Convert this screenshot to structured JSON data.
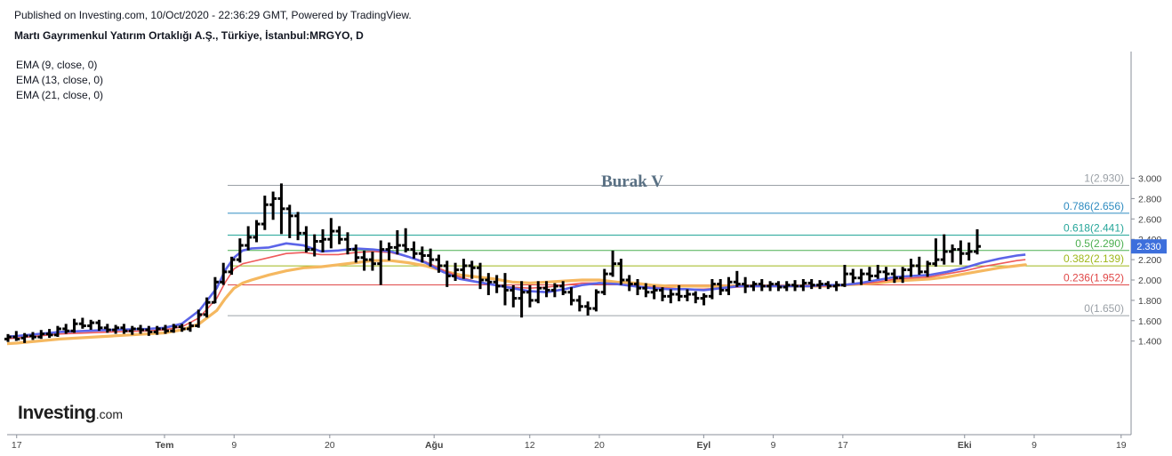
{
  "header": {
    "published": "Published on Investing.com, 10/Oct/2020 - 22:36:29 GMT, Powered by TradingView.",
    "symbol": "Martı Gayrımenkul Yatırım Ortaklığı A.Ş., Türkiye, İstanbul:MRGYO, D"
  },
  "indicators": [
    {
      "label": "EMA (9, close, 0)",
      "color": "#5b64e8"
    },
    {
      "label": "EMA (13, close, 0)",
      "color": "#ef5a5a"
    },
    {
      "label": "EMA (21, close, 0)",
      "color": "#f5b860"
    }
  ],
  "logo": {
    "brand": "Investing",
    "suffix": ".com"
  },
  "annotation": {
    "text": "Burak V"
  },
  "price_badge": {
    "value": "2.330",
    "color": "#3d6fdc"
  },
  "chart_data": {
    "type": "ohlc",
    "title": "Martı Gayrımenkul Yatırım Ortaklığı A.Ş., Türkiye, İstanbul:MRGYO, D",
    "ylim": [
      1.22,
      3.08
    ],
    "y_ticks": [
      "3.000",
      "2.800",
      "2.600",
      "2.400",
      "2.200",
      "2.000",
      "1.800",
      "1.600",
      "1.400"
    ],
    "x_ticks": [
      {
        "label": "17",
        "day": -17
      },
      {
        "label": "Tem",
        "day": 0
      },
      {
        "label": "9",
        "day": 8
      },
      {
        "label": "20",
        "day": 19
      },
      {
        "label": "Ağu",
        "day": 31
      },
      {
        "label": "12",
        "day": 42
      },
      {
        "label": "20",
        "day": 50
      },
      {
        "label": "Eyl",
        "day": 62
      },
      {
        "label": "9",
        "day": 70
      },
      {
        "label": "17",
        "day": 78
      },
      {
        "label": "Eki",
        "day": 92
      },
      {
        "label": "9",
        "day": 100
      },
      {
        "label": "19",
        "day": 110
      }
    ],
    "fib_levels": [
      {
        "ratio": "1",
        "value": 2.93,
        "label": "1(2.930)",
        "color": "#9aa0a6"
      },
      {
        "ratio": "0.786",
        "value": 2.656,
        "label": "0.786(2.656)",
        "color": "#2e8bc0"
      },
      {
        "ratio": "0.618",
        "value": 2.441,
        "label": "0.618(2.441)",
        "color": "#26a69a"
      },
      {
        "ratio": "0.5",
        "value": 2.29,
        "label": "0.5(2.290)",
        "color": "#4caf50"
      },
      {
        "ratio": "0.382",
        "value": 2.139,
        "label": "0.382(2.139)",
        "color": "#9fb81a"
      },
      {
        "ratio": "0.236",
        "value": 1.952,
        "label": "0.236(1.952)",
        "color": "#e04848"
      },
      {
        "ratio": "0",
        "value": 1.65,
        "label": "0(1.650)",
        "color": "#9aa0a6"
      }
    ],
    "ohlc": [
      [
        1.42,
        1.46,
        1.4,
        1.44
      ],
      [
        1.44,
        1.49,
        1.41,
        1.42
      ],
      [
        1.43,
        1.47,
        1.39,
        1.45
      ],
      [
        1.45,
        1.48,
        1.42,
        1.44
      ],
      [
        1.44,
        1.5,
        1.43,
        1.47
      ],
      [
        1.47,
        1.51,
        1.44,
        1.46
      ],
      [
        1.46,
        1.54,
        1.45,
        1.52
      ],
      [
        1.52,
        1.56,
        1.48,
        1.5
      ],
      [
        1.5,
        1.61,
        1.49,
        1.57
      ],
      [
        1.57,
        1.62,
        1.53,
        1.55
      ],
      [
        1.55,
        1.6,
        1.52,
        1.58
      ],
      [
        1.58,
        1.6,
        1.51,
        1.53
      ],
      [
        1.53,
        1.56,
        1.49,
        1.51
      ],
      [
        1.51,
        1.55,
        1.48,
        1.53
      ],
      [
        1.53,
        1.56,
        1.48,
        1.5
      ],
      [
        1.5,
        1.54,
        1.47,
        1.52
      ],
      [
        1.52,
        1.55,
        1.48,
        1.51
      ],
      [
        1.51,
        1.54,
        1.46,
        1.49
      ],
      [
        1.49,
        1.54,
        1.47,
        1.52
      ],
      [
        1.52,
        1.55,
        1.48,
        1.5
      ],
      [
        1.5,
        1.56,
        1.49,
        1.54
      ],
      [
        1.54,
        1.56,
        1.5,
        1.52
      ],
      [
        1.52,
        1.58,
        1.5,
        1.55
      ],
      [
        1.55,
        1.7,
        1.54,
        1.66
      ],
      [
        1.66,
        1.82,
        1.64,
        1.78
      ],
      [
        1.78,
        2.02,
        1.78,
        1.98
      ],
      [
        1.98,
        2.16,
        1.96,
        2.08
      ],
      [
        2.08,
        2.22,
        2.06,
        2.2
      ],
      [
        2.2,
        2.4,
        2.18,
        2.34
      ],
      [
        2.34,
        2.52,
        2.3,
        2.42
      ],
      [
        2.42,
        2.58,
        2.38,
        2.55
      ],
      [
        2.55,
        2.82,
        2.5,
        2.74
      ],
      [
        2.74,
        2.86,
        2.6,
        2.8
      ],
      [
        2.8,
        2.94,
        2.46,
        2.7
      ],
      [
        2.7,
        2.73,
        2.42,
        2.63
      ],
      [
        2.63,
        2.66,
        2.4,
        2.46
      ],
      [
        2.46,
        2.52,
        2.28,
        2.3
      ],
      [
        2.3,
        2.44,
        2.24,
        2.38
      ],
      [
        2.38,
        2.49,
        2.28,
        2.4
      ],
      [
        2.4,
        2.6,
        2.32,
        2.48
      ],
      [
        2.48,
        2.52,
        2.36,
        2.4
      ],
      [
        2.4,
        2.46,
        2.26,
        2.3
      ],
      [
        2.3,
        2.34,
        2.18,
        2.22
      ],
      [
        2.22,
        2.28,
        2.1,
        2.2
      ],
      [
        2.2,
        2.27,
        2.1,
        2.16
      ],
      [
        2.16,
        2.38,
        1.96,
        2.3
      ],
      [
        2.3,
        2.36,
        2.2,
        2.32
      ],
      [
        2.32,
        2.48,
        2.26,
        2.34
      ],
      [
        2.34,
        2.5,
        2.28,
        2.3
      ],
      [
        2.3,
        2.37,
        2.22,
        2.26
      ],
      [
        2.26,
        2.32,
        2.18,
        2.24
      ],
      [
        2.24,
        2.3,
        2.14,
        2.2
      ],
      [
        2.2,
        2.24,
        2.08,
        2.14
      ],
      [
        2.14,
        2.18,
        1.94,
        2.04
      ],
      [
        2.04,
        2.16,
        2.0,
        2.1
      ],
      [
        2.1,
        2.2,
        2.02,
        2.14
      ],
      [
        2.14,
        2.18,
        2.02,
        2.12
      ],
      [
        2.12,
        2.16,
        1.92,
        2.0
      ],
      [
        2.0,
        2.06,
        1.86,
        1.98
      ],
      [
        1.98,
        2.04,
        1.88,
        1.94
      ],
      [
        1.94,
        2.06,
        1.76,
        1.9
      ],
      [
        1.9,
        1.94,
        1.74,
        1.82
      ],
      [
        1.82,
        1.98,
        1.64,
        1.88
      ],
      [
        1.88,
        1.94,
        1.74,
        1.8
      ],
      [
        1.8,
        1.98,
        1.78,
        1.92
      ],
      [
        1.92,
        1.98,
        1.84,
        1.9
      ],
      [
        1.9,
        1.96,
        1.84,
        1.94
      ],
      [
        1.94,
        1.98,
        1.86,
        1.88
      ],
      [
        1.88,
        1.92,
        1.76,
        1.8
      ],
      [
        1.8,
        1.84,
        1.7,
        1.74
      ],
      [
        1.74,
        1.78,
        1.66,
        1.72
      ],
      [
        1.72,
        1.9,
        1.7,
        1.88
      ],
      [
        1.88,
        2.1,
        1.86,
        2.06
      ],
      [
        2.06,
        2.28,
        2.04,
        2.16
      ],
      [
        2.16,
        2.2,
        1.96,
        2.0
      ],
      [
        2.0,
        2.04,
        1.9,
        1.96
      ],
      [
        1.96,
        2.0,
        1.86,
        1.92
      ],
      [
        1.92,
        1.96,
        1.84,
        1.88
      ],
      [
        1.88,
        1.94,
        1.82,
        1.9
      ],
      [
        1.9,
        1.92,
        1.8,
        1.84
      ],
      [
        1.84,
        1.9,
        1.78,
        1.86
      ],
      [
        1.86,
        1.94,
        1.8,
        1.84
      ],
      [
        1.84,
        1.9,
        1.8,
        1.86
      ],
      [
        1.86,
        1.88,
        1.78,
        1.82
      ],
      [
        1.82,
        1.86,
        1.76,
        1.84
      ],
      [
        1.84,
        2.0,
        1.82,
        1.96
      ],
      [
        1.96,
        2.0,
        1.86,
        1.9
      ],
      [
        1.9,
        2.02,
        1.86,
        1.98
      ],
      [
        1.98,
        2.08,
        1.94,
        1.96
      ],
      [
        1.96,
        2.02,
        1.88,
        1.94
      ],
      [
        1.94,
        1.98,
        1.9,
        1.96
      ],
      [
        1.96,
        2.0,
        1.9,
        1.94
      ],
      [
        1.94,
        1.98,
        1.9,
        1.96
      ],
      [
        1.96,
        1.98,
        1.9,
        1.93
      ],
      [
        1.93,
        1.98,
        1.9,
        1.95
      ],
      [
        1.95,
        1.99,
        1.9,
        1.94
      ],
      [
        1.94,
        2.0,
        1.9,
        1.97
      ],
      [
        1.97,
        2.0,
        1.92,
        1.95
      ],
      [
        1.95,
        1.99,
        1.92,
        1.96
      ],
      [
        1.96,
        1.98,
        1.92,
        1.94
      ],
      [
        1.94,
        1.98,
        1.9,
        1.95
      ],
      [
        1.95,
        2.14,
        1.94,
        2.06
      ],
      [
        2.06,
        2.1,
        1.98,
        2.02
      ],
      [
        2.02,
        2.1,
        1.96,
        2.06
      ],
      [
        2.06,
        2.12,
        2.0,
        2.04
      ],
      [
        2.04,
        2.14,
        2.02,
        2.08
      ],
      [
        2.08,
        2.12,
        2.0,
        2.06
      ],
      [
        2.06,
        2.1,
        1.98,
        2.02
      ],
      [
        2.02,
        2.12,
        1.98,
        2.1
      ],
      [
        2.1,
        2.2,
        2.04,
        2.14
      ],
      [
        2.14,
        2.22,
        2.06,
        2.08
      ],
      [
        2.08,
        2.18,
        2.04,
        2.16
      ],
      [
        2.16,
        2.4,
        2.14,
        2.2
      ],
      [
        2.2,
        2.44,
        2.16,
        2.28
      ],
      [
        2.28,
        2.34,
        2.18,
        2.3
      ],
      [
        2.3,
        2.38,
        2.16,
        2.26
      ],
      [
        2.26,
        2.36,
        2.2,
        2.28
      ],
      [
        2.28,
        2.49,
        2.26,
        2.33
      ]
    ],
    "ema9": [
      [
        -25,
        1.41
      ],
      [
        -17,
        1.45
      ],
      [
        -12,
        1.49
      ],
      [
        -6,
        1.51
      ],
      [
        -2,
        1.52
      ],
      [
        0,
        1.53
      ],
      [
        2,
        1.57
      ],
      [
        4,
        1.7
      ],
      [
        6,
        1.92
      ],
      [
        7,
        2.1
      ],
      [
        8,
        2.22
      ],
      [
        9,
        2.29
      ],
      [
        10,
        2.31
      ],
      [
        12,
        2.32
      ],
      [
        14,
        2.36
      ],
      [
        16,
        2.34
      ],
      [
        18,
        2.28
      ],
      [
        20,
        2.29
      ],
      [
        22,
        2.31
      ],
      [
        24,
        2.3
      ],
      [
        26,
        2.28
      ],
      [
        28,
        2.23
      ],
      [
        30,
        2.17
      ],
      [
        32,
        2.08
      ],
      [
        34,
        2.01
      ],
      [
        36,
        1.98
      ],
      [
        38,
        1.95
      ],
      [
        40,
        1.92
      ],
      [
        42,
        1.89
      ],
      [
        44,
        1.88
      ],
      [
        46,
        1.91
      ],
      [
        48,
        1.95
      ],
      [
        50,
        1.97
      ],
      [
        52,
        1.96
      ],
      [
        54,
        1.94
      ],
      [
        56,
        1.92
      ],
      [
        58,
        1.91
      ],
      [
        60,
        1.91
      ],
      [
        62,
        1.9
      ],
      [
        64,
        1.92
      ],
      [
        66,
        1.94
      ],
      [
        68,
        1.94
      ],
      [
        70,
        1.94
      ],
      [
        72,
        1.94
      ],
      [
        74,
        1.94
      ],
      [
        76,
        1.95
      ],
      [
        78,
        1.95
      ],
      [
        80,
        1.97
      ],
      [
        82,
        2.0
      ],
      [
        84,
        2.03
      ],
      [
        86,
        2.04
      ],
      [
        88,
        2.05
      ],
      [
        90,
        2.08
      ],
      [
        92,
        2.12
      ],
      [
        94,
        2.17
      ],
      [
        96,
        2.21
      ],
      [
        98,
        2.24
      ],
      [
        99,
        2.25
      ]
    ],
    "ema13": [
      [
        -25,
        1.39
      ],
      [
        -17,
        1.43
      ],
      [
        -12,
        1.47
      ],
      [
        -6,
        1.49
      ],
      [
        -2,
        1.5
      ],
      [
        0,
        1.51
      ],
      [
        2,
        1.54
      ],
      [
        4,
        1.63
      ],
      [
        6,
        1.82
      ],
      [
        7,
        1.98
      ],
      [
        8,
        2.11
      ],
      [
        9,
        2.16
      ],
      [
        10,
        2.18
      ],
      [
        12,
        2.22
      ],
      [
        14,
        2.26
      ],
      [
        16,
        2.27
      ],
      [
        18,
        2.25
      ],
      [
        20,
        2.25
      ],
      [
        22,
        2.27
      ],
      [
        24,
        2.28
      ],
      [
        26,
        2.27
      ],
      [
        28,
        2.23
      ],
      [
        30,
        2.18
      ],
      [
        32,
        2.1
      ],
      [
        34,
        2.03
      ],
      [
        36,
        1.98
      ],
      [
        38,
        1.95
      ],
      [
        40,
        1.93
      ],
      [
        42,
        1.92
      ],
      [
        44,
        1.93
      ],
      [
        46,
        1.95
      ],
      [
        48,
        1.97
      ],
      [
        50,
        1.97
      ],
      [
        52,
        1.96
      ],
      [
        54,
        1.94
      ],
      [
        56,
        1.93
      ],
      [
        58,
        1.92
      ],
      [
        60,
        1.91
      ],
      [
        62,
        1.91
      ],
      [
        64,
        1.92
      ],
      [
        66,
        1.93
      ],
      [
        68,
        1.94
      ],
      [
        70,
        1.94
      ],
      [
        72,
        1.94
      ],
      [
        74,
        1.94
      ],
      [
        76,
        1.94
      ],
      [
        78,
        1.95
      ],
      [
        80,
        1.96
      ],
      [
        82,
        1.98
      ],
      [
        84,
        2.01
      ],
      [
        86,
        2.02
      ],
      [
        88,
        2.03
      ],
      [
        90,
        2.06
      ],
      [
        92,
        2.09
      ],
      [
        94,
        2.13
      ],
      [
        96,
        2.16
      ],
      [
        98,
        2.19
      ],
      [
        99,
        2.2
      ]
    ],
    "ema21": [
      [
        -25,
        1.34
      ],
      [
        -17,
        1.38
      ],
      [
        -12,
        1.42
      ],
      [
        -6,
        1.45
      ],
      [
        -2,
        1.47
      ],
      [
        0,
        1.48
      ],
      [
        2,
        1.51
      ],
      [
        4,
        1.57
      ],
      [
        6,
        1.7
      ],
      [
        7,
        1.82
      ],
      [
        8,
        1.92
      ],
      [
        9,
        1.97
      ],
      [
        10,
        2.0
      ],
      [
        12,
        2.05
      ],
      [
        14,
        2.09
      ],
      [
        16,
        2.12
      ],
      [
        18,
        2.13
      ],
      [
        20,
        2.15
      ],
      [
        22,
        2.17
      ],
      [
        24,
        2.19
      ],
      [
        26,
        2.19
      ],
      [
        28,
        2.17
      ],
      [
        30,
        2.14
      ],
      [
        32,
        2.09
      ],
      [
        34,
        2.05
      ],
      [
        36,
        2.03
      ],
      [
        38,
        2.01
      ],
      [
        40,
        1.98
      ],
      [
        42,
        1.97
      ],
      [
        44,
        1.98
      ],
      [
        46,
        1.99
      ],
      [
        48,
        2.0
      ],
      [
        50,
        2.0
      ],
      [
        52,
        1.98
      ],
      [
        54,
        1.97
      ],
      [
        56,
        1.95
      ],
      [
        58,
        1.94
      ],
      [
        60,
        1.94
      ],
      [
        62,
        1.94
      ],
      [
        64,
        1.94
      ],
      [
        66,
        1.94
      ],
      [
        68,
        1.94
      ],
      [
        70,
        1.94
      ],
      [
        72,
        1.94
      ],
      [
        74,
        1.94
      ],
      [
        76,
        1.94
      ],
      [
        78,
        1.95
      ],
      [
        80,
        1.96
      ],
      [
        82,
        1.97
      ],
      [
        84,
        1.99
      ],
      [
        86,
        2.0
      ],
      [
        88,
        2.01
      ],
      [
        90,
        2.03
      ],
      [
        92,
        2.06
      ],
      [
        94,
        2.09
      ],
      [
        96,
        2.12
      ],
      [
        98,
        2.14
      ],
      [
        99,
        2.15
      ]
    ]
  }
}
